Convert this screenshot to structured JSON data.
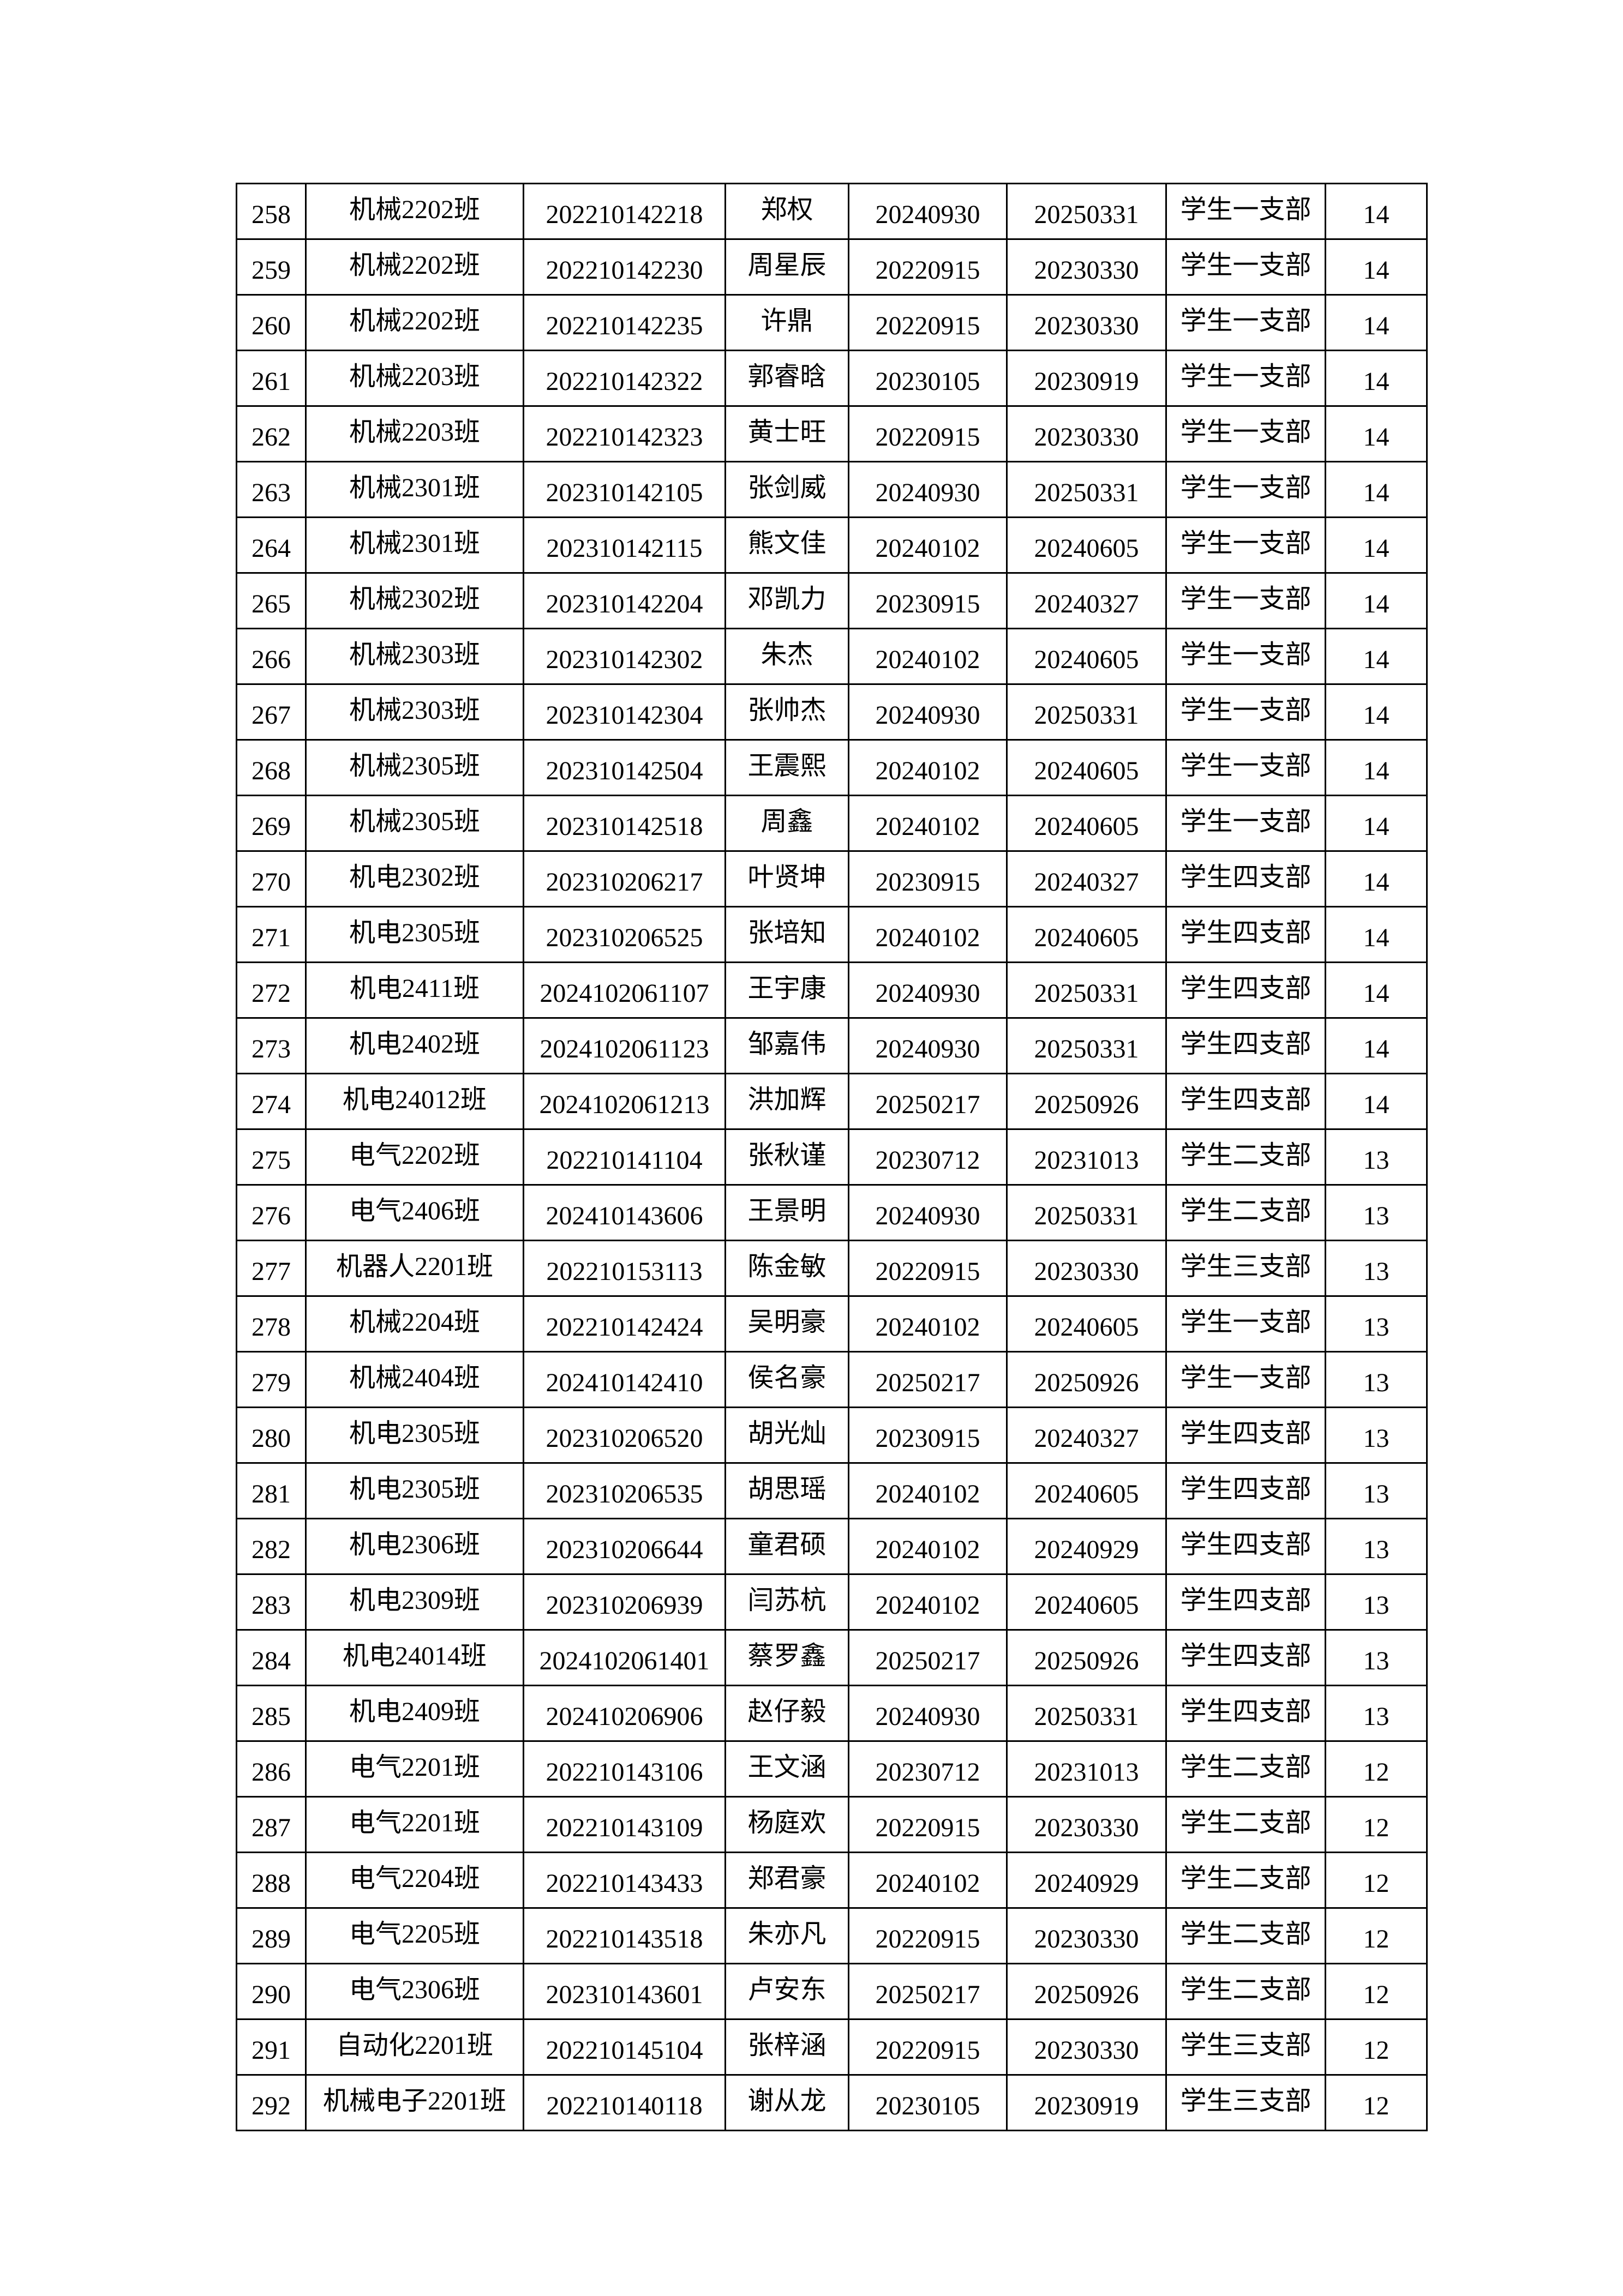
{
  "table": {
    "rows": [
      [
        "258",
        "机械2202班",
        "202210142218",
        "郑权",
        "20240930",
        "20250331",
        "学生一支部",
        "14"
      ],
      [
        "259",
        "机械2202班",
        "202210142230",
        "周星辰",
        "20220915",
        "20230330",
        "学生一支部",
        "14"
      ],
      [
        "260",
        "机械2202班",
        "202210142235",
        "许鼎",
        "20220915",
        "20230330",
        "学生一支部",
        "14"
      ],
      [
        "261",
        "机械2203班",
        "202210142322",
        "郭睿晗",
        "20230105",
        "20230919",
        "学生一支部",
        "14"
      ],
      [
        "262",
        "机械2203班",
        "202210142323",
        "黄士旺",
        "20220915",
        "20230330",
        "学生一支部",
        "14"
      ],
      [
        "263",
        "机械2301班",
        "202310142105",
        "张剑威",
        "20240930",
        "20250331",
        "学生一支部",
        "14"
      ],
      [
        "264",
        "机械2301班",
        "202310142115",
        "熊文佳",
        "20240102",
        "20240605",
        "学生一支部",
        "14"
      ],
      [
        "265",
        "机械2302班",
        "202310142204",
        "邓凯力",
        "20230915",
        "20240327",
        "学生一支部",
        "14"
      ],
      [
        "266",
        "机械2303班",
        "202310142302",
        "朱杰",
        "20240102",
        "20240605",
        "学生一支部",
        "14"
      ],
      [
        "267",
        "机械2303班",
        "202310142304",
        "张帅杰",
        "20240930",
        "20250331",
        "学生一支部",
        "14"
      ],
      [
        "268",
        "机械2305班",
        "202310142504",
        "王震熙",
        "20240102",
        "20240605",
        "学生一支部",
        "14"
      ],
      [
        "269",
        "机械2305班",
        "202310142518",
        "周鑫",
        "20240102",
        "20240605",
        "学生一支部",
        "14"
      ],
      [
        "270",
        "机电2302班",
        "202310206217",
        "叶贤坤",
        "20230915",
        "20240327",
        "学生四支部",
        "14"
      ],
      [
        "271",
        "机电2305班",
        "202310206525",
        "张培知",
        "20240102",
        "20240605",
        "学生四支部",
        "14"
      ],
      [
        "272",
        "机电2411班",
        "2024102061107",
        "王宇康",
        "20240930",
        "20250331",
        "学生四支部",
        "14"
      ],
      [
        "273",
        "机电2402班",
        "2024102061123",
        "邹嘉伟",
        "20240930",
        "20250331",
        "学生四支部",
        "14"
      ],
      [
        "274",
        "机电24012班",
        "2024102061213",
        "洪加辉",
        "20250217",
        "20250926",
        "学生四支部",
        "14"
      ],
      [
        "275",
        "电气2202班",
        "202210141104",
        "张秋谨",
        "20230712",
        "20231013",
        "学生二支部",
        "13"
      ],
      [
        "276",
        "电气2406班",
        "202410143606",
        "王景明",
        "20240930",
        "20250331",
        "学生二支部",
        "13"
      ],
      [
        "277",
        "机器人2201班",
        "202210153113",
        "陈金敏",
        "20220915",
        "20230330",
        "学生三支部",
        "13"
      ],
      [
        "278",
        "机械2204班",
        "202210142424",
        "吴明豪",
        "20240102",
        "20240605",
        "学生一支部",
        "13"
      ],
      [
        "279",
        "机械2404班",
        "202410142410",
        "侯名豪",
        "20250217",
        "20250926",
        "学生一支部",
        "13"
      ],
      [
        "280",
        "机电2305班",
        "202310206520",
        "胡光灿",
        "20230915",
        "20240327",
        "学生四支部",
        "13"
      ],
      [
        "281",
        "机电2305班",
        "202310206535",
        "胡思瑶",
        "20240102",
        "20240605",
        "学生四支部",
        "13"
      ],
      [
        "282",
        "机电2306班",
        "202310206644",
        "童君硕",
        "20240102",
        "20240929",
        "学生四支部",
        "13"
      ],
      [
        "283",
        "机电2309班",
        "202310206939",
        "闫苏杭",
        "20240102",
        "20240605",
        "学生四支部",
        "13"
      ],
      [
        "284",
        "机电24014班",
        "2024102061401",
        "蔡罗鑫",
        "20250217",
        "20250926",
        "学生四支部",
        "13"
      ],
      [
        "285",
        "机电2409班",
        "202410206906",
        "赵仔毅",
        "20240930",
        "20250331",
        "学生四支部",
        "13"
      ],
      [
        "286",
        "电气2201班",
        "202210143106",
        "王文涵",
        "20230712",
        "20231013",
        "学生二支部",
        "12"
      ],
      [
        "287",
        "电气2201班",
        "202210143109",
        "杨庭欢",
        "20220915",
        "20230330",
        "学生二支部",
        "12"
      ],
      [
        "288",
        "电气2204班",
        "202210143433",
        "郑君豪",
        "20240102",
        "20240929",
        "学生二支部",
        "12"
      ],
      [
        "289",
        "电气2205班",
        "202210143518",
        "朱亦凡",
        "20220915",
        "20230330",
        "学生二支部",
        "12"
      ],
      [
        "290",
        "电气2306班",
        "202310143601",
        "卢安东",
        "20250217",
        "20250926",
        "学生二支部",
        "12"
      ],
      [
        "291",
        "自动化2201班",
        "202210145104",
        "张梓涵",
        "20220915",
        "20230330",
        "学生三支部",
        "12"
      ],
      [
        "292",
        "机械电子2201班",
        "202210140118",
        "谢从龙",
        "20230105",
        "20230919",
        "学生三支部",
        "12"
      ]
    ]
  }
}
